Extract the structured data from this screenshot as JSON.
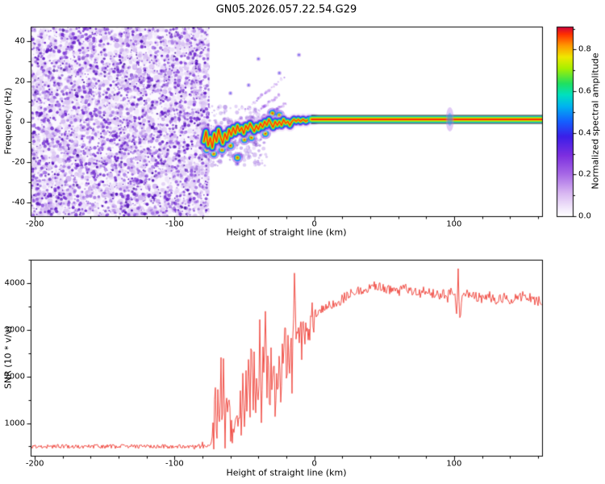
{
  "chart_data": [
    {
      "type": "heatmap",
      "title": "GN05.2026.057.22.54.G29",
      "xlabel": "Height of straight line (km)",
      "ylabel": "Frequency (Hz)",
      "xlim": [
        -203,
        163
      ],
      "ylim": [
        -47,
        47
      ],
      "xticks": [
        {
          "v": -200,
          "label": "-200"
        },
        {
          "v": -100,
          "label": "-100"
        },
        {
          "v": 0,
          "label": "0"
        },
        {
          "v": 100,
          "label": "100"
        }
      ],
      "yticks": [
        {
          "v": -40,
          "label": "-40"
        },
        {
          "v": -20,
          "label": "-20"
        },
        {
          "v": 0,
          "label": "0"
        },
        {
          "v": 20,
          "label": "20"
        },
        {
          "v": 40,
          "label": "40"
        }
      ],
      "x_minor_step": 20,
      "y_minor_step": 10,
      "noise_region": {
        "x_start": -203,
        "x_end": -75,
        "amplitude_range": [
          0,
          0.35
        ]
      },
      "signal_track": [
        [
          -79,
          -10
        ],
        [
          -77.5,
          -5
        ],
        [
          -76,
          -12
        ],
        [
          -74.5,
          -8
        ],
        [
          -73,
          -13
        ],
        [
          -71.5,
          -6
        ],
        [
          -70,
          -10
        ],
        [
          -68.5,
          -4
        ],
        [
          -67,
          -8
        ],
        [
          -65.5,
          -11
        ],
        [
          -64,
          -6
        ],
        [
          -62.5,
          -9
        ],
        [
          -61,
          -4
        ],
        [
          -59.5,
          -7
        ],
        [
          -58,
          -3
        ],
        [
          -56.5,
          -6
        ],
        [
          -55,
          -2
        ],
        [
          -53.5,
          -5
        ],
        [
          -52,
          -3
        ],
        [
          -50.5,
          -6
        ],
        [
          -49,
          -2
        ],
        [
          -47.5,
          -4
        ],
        [
          -46,
          -1
        ],
        [
          -44.5,
          -3
        ],
        [
          -43,
          -5
        ],
        [
          -41.5,
          -2
        ],
        [
          -40,
          -4
        ],
        [
          -38.5,
          -1
        ],
        [
          -37,
          -3
        ],
        [
          -35.5,
          0
        ],
        [
          -34,
          -2
        ],
        [
          -32.5,
          1
        ],
        [
          -31,
          -1
        ],
        [
          -29.5,
          -3
        ],
        [
          -28,
          0
        ],
        [
          -26.5,
          -2
        ],
        [
          -25,
          0
        ],
        [
          -23.5,
          -2
        ],
        [
          -22,
          1
        ],
        [
          -20.5,
          -1
        ],
        [
          -19,
          0
        ],
        [
          -17.5,
          -2
        ],
        [
          -16,
          0
        ],
        [
          -14.5,
          1
        ],
        [
          -13,
          0
        ],
        [
          -11.5,
          1
        ],
        [
          -10,
          0
        ],
        [
          -8,
          1
        ],
        [
          -6,
          0
        ],
        [
          -4,
          1
        ],
        [
          -2,
          1
        ],
        [
          0,
          1
        ]
      ],
      "track_blobs": [
        [
          -77,
          -14
        ],
        [
          -72,
          -16
        ],
        [
          -66,
          -14
        ],
        [
          -60,
          -12
        ],
        [
          -55,
          -18
        ],
        [
          -50,
          -9
        ],
        [
          -45,
          -8
        ],
        [
          -35,
          -6
        ],
        [
          -30,
          4
        ],
        [
          -25,
          3
        ]
      ],
      "faint_blobs": [
        [
          -40,
          31
        ],
        [
          -25,
          24
        ],
        [
          -11,
          33
        ],
        [
          -66,
          -17
        ],
        [
          -55,
          -21
        ],
        [
          -60,
          14
        ],
        [
          -47,
          18
        ]
      ],
      "streaks": [
        [
          [
            -50,
            5
          ],
          [
            -22,
            22
          ]
        ],
        [
          [
            -43,
            4
          ],
          [
            -25,
            13
          ]
        ],
        [
          [
            -38,
            2
          ],
          [
            -20,
            9
          ]
        ]
      ],
      "straight_line": {
        "x_start": 0,
        "x_end": 163,
        "frequency": 1,
        "amplitude": 1.0
      },
      "disturbance_x": 97,
      "colorbar": {
        "label": "Normalized spectral amplitude",
        "ticks": [
          {
            "v": 0,
            "label": "0.0"
          },
          {
            "v": 0.2,
            "label": "0.2"
          },
          {
            "v": 0.4,
            "label": "0.4"
          },
          {
            "v": 0.6,
            "label": "0.6"
          },
          {
            "v": 0.8,
            "label": "0.8"
          }
        ],
        "minor_step": 0.1,
        "range": [
          0,
          0.91
        ],
        "stops": [
          {
            "t": 0.0,
            "c": "#ffffff"
          },
          {
            "t": 0.04,
            "c": "#f3eafc"
          },
          {
            "t": 0.12,
            "c": "#d9b8f2"
          },
          {
            "t": 0.22,
            "c": "#a86ae6"
          },
          {
            "t": 0.32,
            "c": "#7d2fe0"
          },
          {
            "t": 0.42,
            "c": "#3b1fe8"
          },
          {
            "t": 0.5,
            "c": "#1560ff"
          },
          {
            "t": 0.58,
            "c": "#00b4f0"
          },
          {
            "t": 0.64,
            "c": "#00e0c0"
          },
          {
            "t": 0.7,
            "c": "#20e060"
          },
          {
            "t": 0.78,
            "c": "#a8f000"
          },
          {
            "t": 0.84,
            "c": "#f0e800"
          },
          {
            "t": 0.9,
            "c": "#ff9800"
          },
          {
            "t": 0.96,
            "c": "#ff3000"
          },
          {
            "t": 1.0,
            "c": "#cc0040"
          }
        ]
      }
    },
    {
      "type": "line",
      "xlabel": "Height of straight line (km)",
      "ylabel": "SNR (10 * v/v)",
      "xlim": [
        -203,
        163
      ],
      "ylim": [
        300,
        4500
      ],
      "xticks": [
        {
          "v": -200,
          "label": "-200"
        },
        {
          "v": -100,
          "label": "-100"
        },
        {
          "v": 0,
          "label": "0"
        },
        {
          "v": 100,
          "label": "100"
        }
      ],
      "yticks": [
        {
          "v": 1000,
          "label": "1000"
        },
        {
          "v": 2000,
          "label": "2000"
        },
        {
          "v": 3000,
          "label": "3000"
        },
        {
          "v": 4000,
          "label": "4000"
        }
      ],
      "x_minor_step": 20,
      "y_minor_step": 500,
      "color": "#ee3c33",
      "series": [
        {
          "name": "SNR",
          "keypoints": [
            [
              -203,
              500
            ],
            [
              -180,
              500
            ],
            [
              -160,
              500
            ],
            [
              -140,
              500
            ],
            [
              -120,
              500
            ],
            [
              -100,
              500
            ],
            [
              -85,
              500
            ],
            [
              -76,
              505
            ],
            [
              -74,
              560
            ],
            [
              -72,
              900
            ],
            [
              -71,
              1800
            ],
            [
              -70,
              620
            ],
            [
              -69,
              2150
            ],
            [
              -68,
              750
            ],
            [
              -67,
              2450
            ],
            [
              -66,
              950
            ],
            [
              -65,
              2300
            ],
            [
              -64,
              640
            ],
            [
              -63,
              1900
            ],
            [
              -62,
              820
            ],
            [
              -61,
              1400
            ],
            [
              -60,
              700
            ],
            [
              -59,
              1120
            ],
            [
              -58,
              640
            ],
            [
              -57,
              960
            ],
            [
              -56,
              720
            ],
            [
              -55,
              1260
            ],
            [
              -54,
              820
            ],
            [
              -53,
              1520
            ],
            [
              -52,
              700
            ],
            [
              -51,
              1900
            ],
            [
              -50,
              920
            ],
            [
              -49,
              2280
            ],
            [
              -48,
              1120
            ],
            [
              -47,
              2680
            ],
            [
              -46,
              1320
            ],
            [
              -45,
              2940
            ],
            [
              -44,
              1150
            ],
            [
              -43,
              2520
            ],
            [
              -42,
              940
            ],
            [
              -41,
              2120
            ],
            [
              -40,
              1520
            ],
            [
              -39,
              2880
            ],
            [
              -38,
              1240
            ],
            [
              -37,
              2480
            ],
            [
              -36,
              1740
            ],
            [
              -35,
              3280
            ],
            [
              -34,
              1560
            ],
            [
              -33,
              2720
            ],
            [
              -32,
              1260
            ],
            [
              -31,
              2320
            ],
            [
              -30,
              1860
            ],
            [
              -29,
              2620
            ],
            [
              -28,
              1360
            ],
            [
              -27,
              2240
            ],
            [
              -26,
              1660
            ],
            [
              -25,
              2820
            ],
            [
              -24,
              1460
            ],
            [
              -23,
              2440
            ],
            [
              -22,
              1960
            ],
            [
              -21,
              3040
            ],
            [
              -20,
              1760
            ],
            [
              -19,
              2640
            ],
            [
              -18,
              2160
            ],
            [
              -17,
              3120
            ],
            [
              -16,
              1960
            ],
            [
              -15,
              2840
            ],
            [
              -14,
              4150
            ],
            [
              -13,
              2360
            ],
            [
              -12,
              3040
            ],
            [
              -11,
              2560
            ],
            [
              -10,
              3220
            ],
            [
              -9,
              2760
            ],
            [
              -8,
              3320
            ],
            [
              -7,
              2660
            ],
            [
              -6,
              3140
            ],
            [
              -5,
              2960
            ],
            [
              -4,
              3300
            ],
            [
              -3,
              3060
            ],
            [
              -2,
              3380
            ],
            [
              -1,
              3160
            ],
            [
              0,
              3320
            ],
            [
              5,
              3450
            ],
            [
              10,
              3560
            ],
            [
              15,
              3520
            ],
            [
              20,
              3660
            ],
            [
              25,
              3760
            ],
            [
              30,
              3800
            ],
            [
              35,
              3860
            ],
            [
              40,
              3920
            ],
            [
              45,
              3960
            ],
            [
              50,
              3900
            ],
            [
              55,
              3860
            ],
            [
              60,
              3800
            ],
            [
              65,
              3880
            ],
            [
              70,
              3820
            ],
            [
              75,
              3780
            ],
            [
              80,
              3840
            ],
            [
              85,
              3760
            ],
            [
              90,
              3720
            ],
            [
              95,
              3790
            ],
            [
              100,
              3830
            ],
            [
              102,
              3400
            ],
            [
              103,
              4380
            ],
            [
              104,
              3150
            ],
            [
              106,
              3710
            ],
            [
              110,
              3770
            ],
            [
              115,
              3710
            ],
            [
              120,
              3670
            ],
            [
              125,
              3730
            ],
            [
              130,
              3620
            ],
            [
              135,
              3690
            ],
            [
              140,
              3640
            ],
            [
              145,
              3690
            ],
            [
              150,
              3730
            ],
            [
              155,
              3670
            ],
            [
              160,
              3620
            ],
            [
              163,
              3580
            ]
          ]
        }
      ],
      "noise_amplitude": {
        "quiet": 45,
        "transition": 420,
        "plateau": 110
      },
      "regions": {
        "quiet_end": -73,
        "transition_end": 0
      }
    }
  ]
}
